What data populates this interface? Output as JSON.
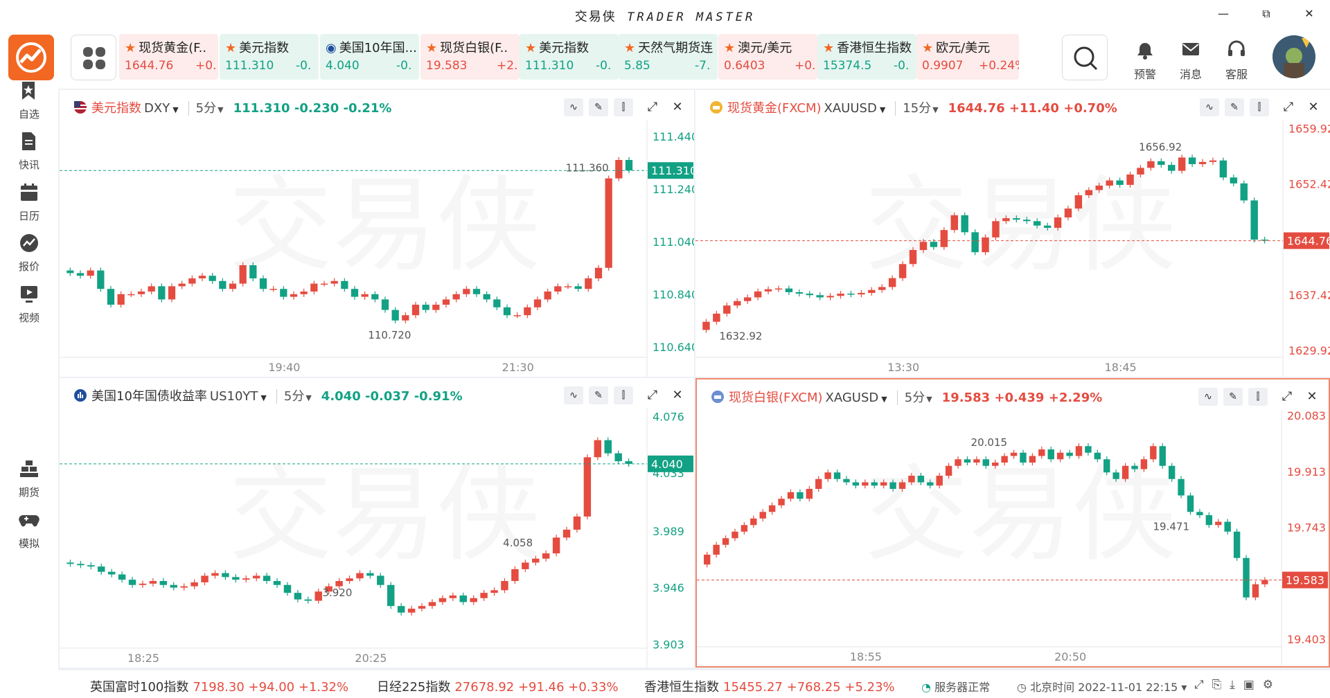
{
  "app": {
    "title_cn": "交易侠",
    "title_en": "TRADER MASTER"
  },
  "window": {
    "minimize": "—",
    "restore": "⧉",
    "close": "✕"
  },
  "tickers": [
    {
      "name": "现货黄金(F..",
      "price": "1644.76",
      "change": "+0.",
      "dir": "up",
      "icon": "star-icon"
    },
    {
      "name": "美元指数",
      "price": "111.310",
      "change": "-0.",
      "dir": "down",
      "icon": "star-icon"
    },
    {
      "name": "美国10年国...",
      "price": "4.040",
      "change": "-0.",
      "dir": "down",
      "icon": "chart-badge-icon"
    },
    {
      "name": "现货白银(F..",
      "price": "19.583",
      "change": "+2.",
      "dir": "up",
      "icon": "star-icon"
    },
    {
      "name": "美元指数",
      "price": "111.310",
      "change": "-0.",
      "dir": "down",
      "icon": "star-icon"
    },
    {
      "name": "天然气期货连",
      "price": "5.85",
      "change": "-7.",
      "dir": "down",
      "icon": "star-icon"
    },
    {
      "name": "澳元/美元",
      "price": "0.6403",
      "change": "+0.",
      "dir": "up",
      "icon": "star-icon"
    },
    {
      "name": "香港恒生指数",
      "price": "15374.5",
      "change": "-0.",
      "dir": "down",
      "icon": "star-icon"
    },
    {
      "name": "欧元/美元",
      "price": "0.9907",
      "change": "+0.24%",
      "dir": "up",
      "icon": "star-icon"
    }
  ],
  "top_actions": [
    {
      "label": "预警",
      "icon": "bell-icon"
    },
    {
      "label": "消息",
      "icon": "mail-icon"
    },
    {
      "label": "客服",
      "icon": "headset-icon"
    }
  ],
  "sidebar": [
    {
      "label": "自选",
      "icon": "bookmark-star-icon"
    },
    {
      "label": "快讯",
      "icon": "news-doc-icon"
    },
    {
      "label": "日历",
      "icon": "calendar-icon"
    },
    {
      "label": "报价",
      "icon": "trend-icon"
    },
    {
      "label": "视频",
      "icon": "video-icon"
    },
    {
      "label": "期货",
      "icon": "gold-bars-icon"
    },
    {
      "label": "模拟",
      "icon": "gamepad-icon"
    }
  ],
  "panels": [
    {
      "name": "美元指数",
      "code": "DXY",
      "interval": "5分",
      "price": "111.310",
      "change": "-0.230",
      "pct": "-0.21%",
      "dir": "down",
      "icon": "us-flag-icon",
      "name_color": "#e44c40"
    },
    {
      "name": "现货黄金(FXCM)",
      "code": "XAUUSD",
      "interval": "15分",
      "price": "1644.76",
      "change": "+11.40",
      "pct": "+0.70%",
      "dir": "up",
      "icon": "gold-icon",
      "name_color": "#e44c40"
    },
    {
      "name": "美国10年国债收益率",
      "code": "US10YT",
      "interval": "5分",
      "price": "4.040",
      "change": "-0.037",
      "pct": "-0.91%",
      "dir": "down",
      "icon": "bond-icon",
      "name_color": "#333333"
    },
    {
      "name": "现货白银(FXCM)",
      "code": "XAGUSD",
      "interval": "5分",
      "price": "19.583",
      "change": "+0.439",
      "pct": "+2.29%",
      "dir": "up",
      "icon": "silver-icon",
      "name_color": "#e44c40"
    }
  ],
  "chart_data": [
    {
      "type": "candlestick",
      "title": "美元指数 DXY 5分",
      "y_ticks": [
        "111.440",
        "111.240",
        "111.040",
        "110.840",
        "110.640"
      ],
      "y_tick_values": [
        111.44,
        111.24,
        111.04,
        110.84,
        110.64
      ],
      "x_ticks": [
        "19:40",
        "21:30"
      ],
      "x_tick_index": [
        21,
        44
      ],
      "current": 111.31,
      "current_label": "111.310",
      "max_label": "111.360",
      "min_label": "110.720",
      "max_index": 53,
      "min_index": 33,
      "ylim": [
        110.6,
        111.5
      ],
      "close": [
        110.92,
        110.91,
        110.93,
        110.86,
        110.8,
        110.84,
        110.84,
        110.85,
        110.87,
        110.82,
        110.87,
        110.88,
        110.9,
        110.91,
        110.89,
        110.86,
        110.88,
        110.95,
        110.9,
        110.86,
        110.86,
        110.83,
        110.84,
        110.85,
        110.88,
        110.88,
        110.89,
        110.86,
        110.83,
        110.84,
        110.82,
        110.78,
        110.74,
        110.76,
        110.8,
        110.78,
        110.8,
        110.82,
        110.84,
        110.86,
        110.84,
        110.82,
        110.79,
        110.76,
        110.76,
        110.79,
        110.82,
        110.85,
        110.87,
        110.87,
        110.86,
        110.9,
        110.94,
        111.28,
        111.35,
        111.31
      ]
    },
    {
      "type": "candlestick",
      "title": "现货黄金(FXCM) XAUUSD 15分",
      "y_ticks": [
        "1659.92",
        "1652.42",
        "1644.76",
        "1637.42",
        "1629.92"
      ],
      "y_tick_values": [
        1659.92,
        1652.42,
        1644.76,
        1637.42,
        1629.92
      ],
      "x_ticks": [
        "13:30",
        "18:45"
      ],
      "x_tick_index": [
        19,
        40
      ],
      "current": 1644.76,
      "current_label": "1644.76",
      "max_label": "1656.92",
      "min_label": "1632.92",
      "max_index": 46,
      "min_index": 1,
      "ylim": [
        1629,
        1661
      ],
      "close": [
        1633.8,
        1634.9,
        1636.0,
        1636.6,
        1637.1,
        1637.9,
        1638.2,
        1638.3,
        1637.8,
        1637.6,
        1637.4,
        1637.1,
        1637.3,
        1637.6,
        1637.5,
        1637.7,
        1638.1,
        1638.5,
        1639.7,
        1641.6,
        1643.5,
        1644.6,
        1643.9,
        1646.2,
        1648.2,
        1645.9,
        1643.2,
        1645.2,
        1647.4,
        1647.8,
        1647.6,
        1647.4,
        1646.8,
        1646.5,
        1647.9,
        1649.1,
        1650.9,
        1651.6,
        1652.2,
        1652.9,
        1652.3,
        1653.7,
        1654.6,
        1655.5,
        1655.0,
        1654.2,
        1656.0,
        1655.1,
        1655.4,
        1655.6,
        1653.3,
        1652.5,
        1650.2,
        1644.9,
        1644.76
      ]
    },
    {
      "type": "candlestick",
      "title": "美国10年国债收益率 US10YT 5分",
      "y_ticks": [
        "4.076",
        "4.033",
        "3.989",
        "3.946",
        "3.903"
      ],
      "y_tick_values": [
        4.076,
        4.033,
        3.989,
        3.946,
        3.903
      ],
      "x_ticks": [
        "18:25",
        "20:25"
      ],
      "x_tick_index": [
        7,
        29
      ],
      "current": 4.04,
      "current_label": "4.040",
      "max_label": "4.058",
      "min_label": "3.920",
      "max_index": 46,
      "min_index": 28,
      "ylim": [
        3.9,
        4.082
      ],
      "close": [
        3.964,
        3.963,
        3.962,
        3.958,
        3.956,
        3.952,
        3.948,
        3.949,
        3.951,
        3.948,
        3.946,
        3.947,
        3.95,
        3.955,
        3.957,
        3.954,
        3.952,
        3.953,
        3.955,
        3.951,
        3.948,
        3.942,
        3.937,
        3.936,
        3.943,
        3.947,
        3.951,
        3.953,
        3.957,
        3.955,
        3.948,
        3.932,
        3.927,
        3.93,
        3.932,
        3.935,
        3.938,
        3.94,
        3.935,
        3.938,
        3.942,
        3.944,
        3.951,
        3.96,
        3.965,
        3.968,
        3.972,
        3.984,
        3.99,
        4.0,
        4.045,
        4.058,
        4.048,
        4.042,
        4.04
      ]
    },
    {
      "type": "candlestick",
      "title": "现货白银(FXCM) XAGUSD 5分",
      "y_ticks": [
        "20.083",
        "19.913",
        "19.743",
        "19.573",
        "19.403"
      ],
      "y_tick_values": [
        20.083,
        19.913,
        19.743,
        19.573,
        19.403
      ],
      "x_ticks": [
        "18:55",
        "20:50"
      ],
      "x_tick_index": [
        17,
        39
      ],
      "current": 19.583,
      "current_label": "19.583",
      "max_label": "20.015",
      "min_label": "19.471",
      "max_index": 33,
      "min_index": 52,
      "ylim": [
        19.38,
        20.1
      ],
      "close": [
        19.66,
        19.69,
        19.71,
        19.73,
        19.75,
        19.77,
        19.79,
        19.81,
        19.83,
        19.85,
        19.83,
        19.86,
        19.89,
        19.91,
        19.89,
        19.88,
        19.87,
        19.88,
        19.87,
        19.88,
        19.86,
        19.88,
        19.9,
        19.88,
        19.87,
        19.9,
        19.93,
        19.95,
        19.94,
        19.95,
        19.93,
        19.94,
        19.96,
        19.97,
        19.94,
        19.96,
        19.98,
        19.95,
        19.97,
        19.96,
        19.99,
        19.97,
        19.95,
        19.91,
        19.89,
        19.93,
        19.92,
        19.95,
        19.99,
        19.93,
        19.89,
        19.84,
        19.79,
        19.78,
        19.75,
        19.76,
        19.73,
        19.65,
        19.53,
        19.57,
        19.583
      ]
    }
  ],
  "statusbar": {
    "indices": [
      {
        "name": "英国富时100指数",
        "value": "7198.30 +94.00 +1.32%"
      },
      {
        "name": "日经225指数",
        "value": "27678.92 +91.46 +0.33%"
      },
      {
        "name": "香港恒生指数",
        "value": "15455.27 +768.25 +5.23%"
      }
    ],
    "server": "服务器正常",
    "time": "北京时间 2022-11-01 22:15"
  },
  "colors": {
    "up": "#e44c40",
    "down": "#12a184",
    "brand": "#f26722"
  }
}
